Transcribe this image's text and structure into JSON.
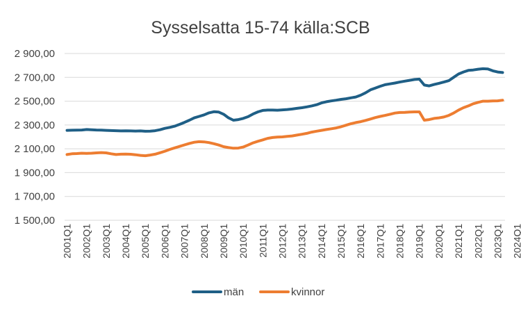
{
  "chart_data": {
    "type": "line",
    "title": "Sysselsatta 15-74 källa:SCB",
    "xlabel": "",
    "ylabel": "",
    "ylim": [
      1500,
      2900
    ],
    "ytick_values": [
      1500,
      1700,
      1900,
      2100,
      2300,
      2500,
      2700,
      2900
    ],
    "ytick_labels": [
      "1 500,00",
      "1 700,00",
      "1 900,00",
      "2 100,00",
      "2 300,00",
      "2 500,00",
      "2 700,00",
      "2 900,00"
    ],
    "xtick_labels": [
      "2001Q1",
      "2002Q1",
      "2003Q1",
      "2004Q1",
      "2005Q1",
      "2006Q1",
      "2007Q1",
      "2008Q1",
      "2009Q1",
      "2010Q1",
      "2011Q1",
      "2012Q1",
      "2013Q1",
      "2014Q1",
      "2015Q1",
      "2016Q1",
      "2017Q1",
      "2018Q1",
      "2019Q1",
      "2020Q1",
      "2021Q1",
      "2022Q1",
      "2023Q1",
      "2024Q1"
    ],
    "grid": true,
    "legend_position": "bottom",
    "series": [
      {
        "name": "män",
        "color": "#1f5f86",
        "values": [
          2255,
          2256,
          2257,
          2258,
          2262,
          2260,
          2258,
          2257,
          2255,
          2253,
          2252,
          2250,
          2251,
          2250,
          2249,
          2250,
          2247,
          2248,
          2252,
          2260,
          2272,
          2280,
          2290,
          2305,
          2322,
          2340,
          2360,
          2372,
          2385,
          2402,
          2411,
          2408,
          2390,
          2360,
          2340,
          2345,
          2355,
          2370,
          2392,
          2410,
          2422,
          2425,
          2425,
          2424,
          2427,
          2430,
          2434,
          2440,
          2445,
          2452,
          2460,
          2470,
          2485,
          2495,
          2502,
          2508,
          2515,
          2520,
          2528,
          2535,
          2550,
          2570,
          2595,
          2610,
          2625,
          2638,
          2645,
          2652,
          2660,
          2668,
          2675,
          2682,
          2685,
          2635,
          2628,
          2640,
          2650,
          2660,
          2672,
          2700,
          2728,
          2745,
          2758,
          2762,
          2768,
          2772,
          2770,
          2755,
          2745,
          2740
        ]
      },
      {
        "name": "kvinnor",
        "color": "#ed7d31",
        "values": [
          2052,
          2058,
          2060,
          2063,
          2062,
          2063,
          2066,
          2068,
          2066,
          2058,
          2052,
          2055,
          2056,
          2054,
          2050,
          2045,
          2042,
          2048,
          2055,
          2067,
          2080,
          2095,
          2108,
          2120,
          2133,
          2145,
          2155,
          2160,
          2158,
          2152,
          2143,
          2132,
          2118,
          2110,
          2105,
          2106,
          2115,
          2132,
          2150,
          2163,
          2175,
          2188,
          2195,
          2198,
          2200,
          2204,
          2208,
          2215,
          2222,
          2230,
          2240,
          2248,
          2255,
          2262,
          2268,
          2275,
          2285,
          2298,
          2310,
          2320,
          2328,
          2338,
          2350,
          2362,
          2372,
          2380,
          2390,
          2400,
          2405,
          2406,
          2408,
          2410,
          2410,
          2340,
          2345,
          2355,
          2360,
          2367,
          2380,
          2400,
          2425,
          2445,
          2460,
          2478,
          2490,
          2500,
          2500,
          2502,
          2503,
          2508
        ]
      }
    ]
  }
}
